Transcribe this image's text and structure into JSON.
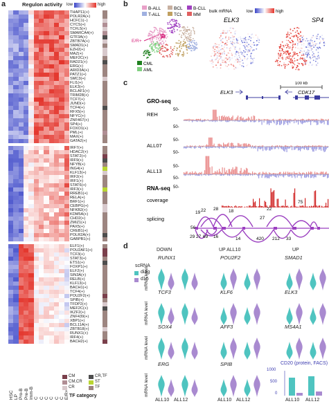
{
  "panel_labels": {
    "a": "a",
    "b": "b",
    "c": "c",
    "d": "d"
  },
  "panel_a": {
    "title": "Regulon activity",
    "legend": {
      "low": "low",
      "high": "high"
    },
    "columns": [
      "HSC",
      "LP",
      "Pro-B",
      "Pre-B",
      "Imm-B",
      "C",
      "C",
      "C",
      "C",
      "C",
      "C",
      "E/R+"
    ],
    "groups": [
      {
        "regulons": [
          "THAP11(+)",
          "POLR2A(+)",
          "HCFC1(−)",
          "CYCS(+)",
          "TCFL5(+)",
          "SMARCA4(+)",
          "GTF3A(+)",
          "ZBTB7A(+)",
          "SMAD1(+)",
          "EZH2(+)",
          "MAZ(+)",
          "MEF2C(+)",
          "RAD21(+)",
          "ERG(+)",
          "ARID3A(+)",
          "PATZ1(+)",
          "SMC3(+)",
          "FLI1(+)",
          "ELK3(+)",
          "BCLAF1(+)",
          "TRIM28(+)",
          "TCF7(+)",
          "JUND(+)",
          "TCF4(+)",
          "RFX5(+)",
          "NFYC(+)",
          "ZNF467(+)",
          "SP4(+)",
          "FOXO1(+)",
          "PML(+)",
          "MAX(+)",
          "GATA2(+)"
        ]
      },
      {
        "regulons": [
          "IRF7(+)",
          "HDAC2(+)",
          "STAT2(+)",
          "IRF9(+)",
          "NFYB(+)",
          "ING4(+)",
          "KLF13(+)",
          "IRF2(+)",
          "IRF1(+)",
          "STAT6(+)",
          "IRF3(+)",
          "RREB1(+)",
          "RELA(+)",
          "BRF1(+)",
          "CEBPG(+)",
          "NFKB2(+)",
          "KDM5A(+)",
          "CHD2(+)",
          "ZMIZ1(+)",
          "PAX5(+)",
          "CREB1(+)",
          "POLR2A(+)",
          "GABPB1(+)"
        ]
      },
      {
        "regulons": [
          "ELF1(+)",
          "POU2AF1(+)",
          "TCF3(+)",
          "STAT3(+)",
          "ETS1(+)",
          "FOXP1(+)",
          "ELF2(+)",
          "SIN3A(+)",
          "RELB(+)",
          "KLF13(+)",
          "BACH1(+)",
          "TCF4(+)",
          "POU2F2(+)",
          "SPIB(+)",
          "TFDP2(+)",
          "MEF2C(+)",
          "IKZF2(+)",
          "ZNF439(+)",
          "XBP1(+)",
          "BCL11A(+)",
          "ZBTB18(+)",
          "RUNX1(+)",
          "IRF4(+)",
          "BACH2(+)"
        ]
      }
    ],
    "tf_category": {
      "title": "TF category",
      "items": [
        {
          "label": "CM",
          "color": "#7a3f4b"
        },
        {
          "label": "CM,CR",
          "color": "#b08e94"
        },
        {
          "label": "CR",
          "color": "#d8c9cc"
        },
        {
          "label": "CR,TF",
          "color": "#4d4d4d"
        },
        {
          "label": "ST",
          "color": "#b9d533"
        },
        {
          "label": "TF",
          "color": "#9d8580"
        }
      ]
    }
  },
  "panel_b": {
    "legend": [
      "B-ALL",
      "BCL",
      "B-CLL",
      "T-ALL",
      "TCL",
      "MM",
      "CML",
      "AML"
    ],
    "legend_colors": [
      "#e8a0c8",
      "#c8b0a0",
      "#a040c0",
      "#a0b0e0",
      "#c0a060",
      "#e06060",
      "#208020",
      "#80d080"
    ],
    "er_label": "E/R+",
    "bulk_label": "bulk mRNA",
    "scale": {
      "low": "low",
      "high": "high"
    },
    "gene_labels": [
      "ELK3",
      "SP4"
    ]
  },
  "panel_c": {
    "scale_text": "100 kb",
    "genes": [
      "ELK3",
      "CDK17"
    ],
    "gro_title": "GRO-seq",
    "tracks": [
      "REH",
      "ALL07",
      "ALL13"
    ],
    "axis_labels": [
      "50-",
      "50-",
      "50-",
      "50-",
      "50-",
      "50-",
      "50-"
    ],
    "rna_title": "RNA-seq",
    "coverage_label": "coverage",
    "splicing_label": "splicing",
    "splice_numbers": [
      "19",
      "22",
      "28",
      "18",
      "22",
      "75",
      "27",
      "56",
      "29",
      "27",
      "69",
      "16",
      "14",
      "420",
      "212",
      "33"
    ]
  },
  "panel_d": {
    "headers": [
      "DOWN",
      "UP ALL10",
      "UP"
    ],
    "legend_title": "scRNA",
    "legend": [
      {
        "label": "diag",
        "color": "#4fc4c0"
      },
      {
        "label": "d15",
        "color": "#a98ad0"
      }
    ],
    "ylabel": "mRNA level",
    "genes": [
      "RUNX1",
      "POU2F2",
      "SMAD1",
      "TCF3",
      "KLF6",
      "ELK3",
      "SOX4",
      "AFF3",
      "MS4A1",
      "ERG",
      "SPIB"
    ],
    "cd20_title": "CD20 (protein, FACS)",
    "cd20_ticks": [
      "1000",
      "500",
      "0"
    ],
    "xlabels": [
      "ALL10",
      "ALL12",
      "ALL10",
      "ALL12",
      "ALL10",
      "ALL12"
    ]
  }
}
